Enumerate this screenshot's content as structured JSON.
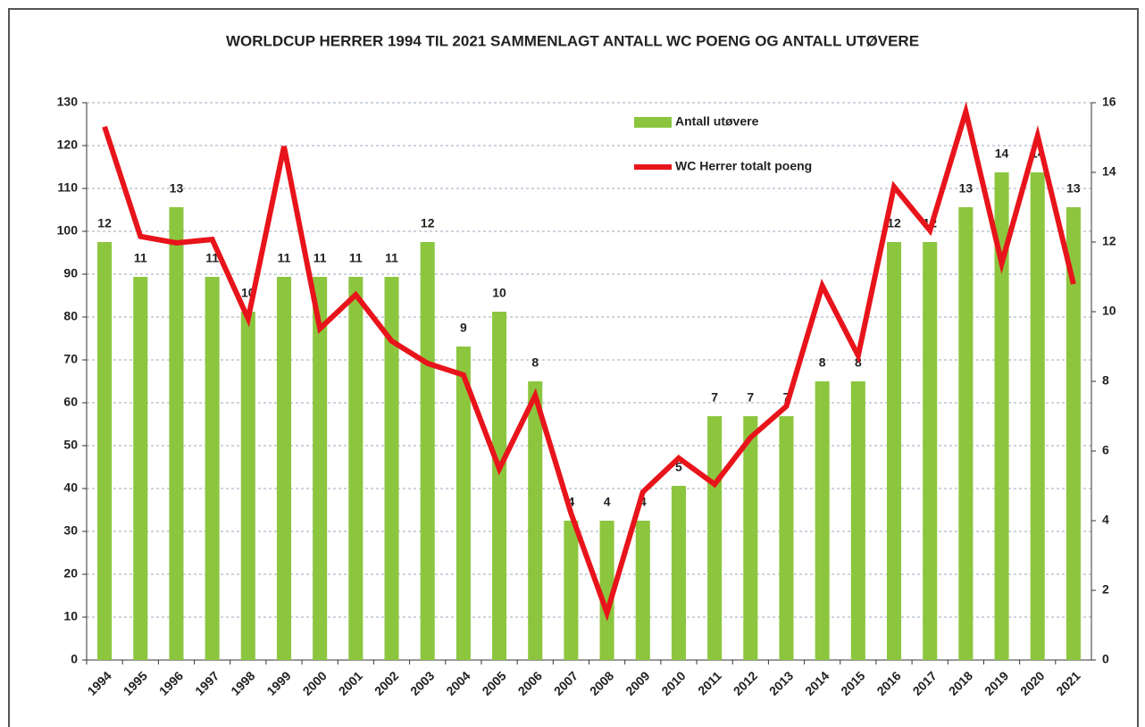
{
  "chart_data": {
    "type": "bar-line",
    "title": "WORLDCUP HERRER 1994 TIL 2021 SAMMENLAGT ANTALL WC POENG OG ANTALL UTØVERE",
    "categories": [
      "1994",
      "1995",
      "1996",
      "1997",
      "1998",
      "1999",
      "2000",
      "2001",
      "2002",
      "2003",
      "2004",
      "2005",
      "2006",
      "2007",
      "2008",
      "2009",
      "2010",
      "2011",
      "2012",
      "2013",
      "2014",
      "2015",
      "2016",
      "2017",
      "2018",
      "2019",
      "2020",
      "2021"
    ],
    "series": [
      {
        "name": "Antall utøvere",
        "type": "bar",
        "axis": "y2",
        "color": "#8cc63f",
        "values": [
          12,
          11,
          13,
          11,
          10,
          11,
          11,
          11,
          11,
          12,
          9,
          10,
          8,
          4,
          4,
          4,
          5,
          7,
          7,
          7,
          8,
          8,
          12,
          12,
          13,
          14,
          14,
          13
        ]
      },
      {
        "name": "WC Herrer totalt poeng",
        "type": "line",
        "color": "#e8141b",
        "values": [
          124.4,
          98.8,
          97.3,
          98.1,
          79.6,
          119.8,
          77.3,
          85.2,
          74.4,
          69.2,
          66.5,
          44.6,
          61.7,
          34.2,
          11,
          39.2,
          47.1,
          41,
          51.9,
          59.2,
          87.3,
          71,
          110.4,
          100.2,
          127.9,
          92.5,
          122.3,
          87.7
        ]
      }
    ],
    "ylim": [
      0,
      130
    ],
    "yticks": [
      0,
      10,
      20,
      30,
      40,
      50,
      60,
      70,
      80,
      90,
      100,
      110,
      120,
      130
    ],
    "y2lim": [
      0,
      16
    ],
    "y2ticks": [
      0,
      2,
      4,
      6,
      8,
      10,
      12,
      14,
      16
    ],
    "grid": true,
    "legend": "top"
  }
}
